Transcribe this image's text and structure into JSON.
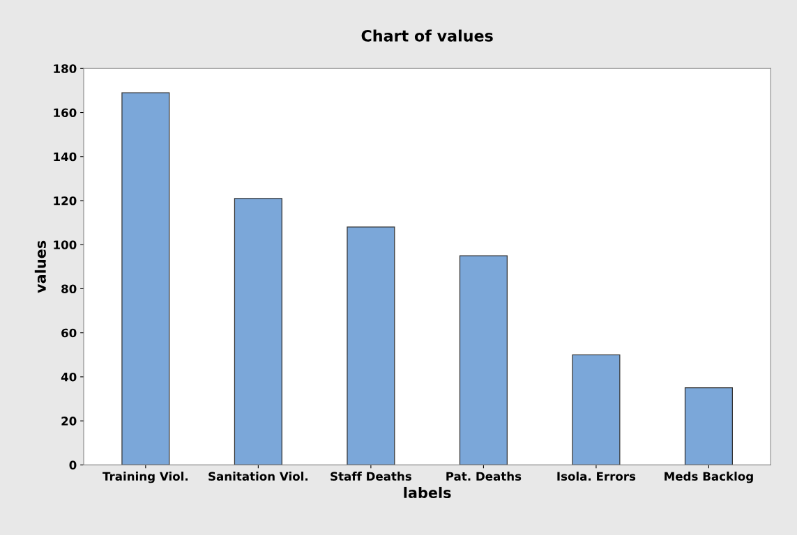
{
  "chart_data": {
    "type": "bar",
    "title": "Chart of values",
    "xlabel": "labels",
    "ylabel": "values",
    "categories": [
      "Training Viol.",
      "Sanitation Viol.",
      "Staff Deaths",
      "Pat. Deaths",
      "Isola. Errors",
      "Meds Backlog"
    ],
    "values": [
      169,
      121,
      108,
      95,
      50,
      35
    ],
    "color": "#7ba7d9",
    "ylim": [
      0,
      180
    ],
    "yticks": [
      0,
      20,
      40,
      60,
      80,
      100,
      120,
      140,
      160,
      180
    ],
    "grid": false,
    "legend": false
  }
}
